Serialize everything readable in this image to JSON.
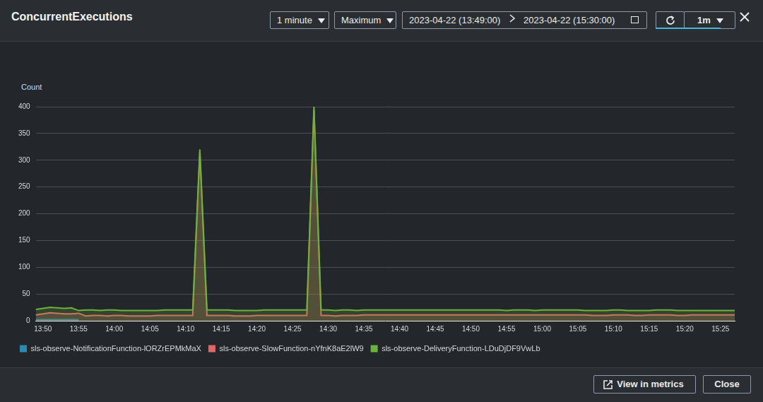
{
  "chart_data": {
    "type": "line",
    "title": "ConcurrentExecutions",
    "ylabel": "Count",
    "categories": [
      null,
      "13:50",
      null,
      null,
      null,
      null,
      "13:55",
      null,
      null,
      null,
      null,
      "14:00",
      null,
      null,
      null,
      null,
      "14:05",
      null,
      null,
      null,
      null,
      "14:10",
      null,
      null,
      null,
      null,
      "14:15",
      null,
      null,
      null,
      null,
      "14:20",
      null,
      null,
      null,
      null,
      "14:25",
      null,
      null,
      null,
      null,
      "14:30",
      null,
      null,
      null,
      null,
      "14:35",
      null,
      null,
      null,
      null,
      "14:40",
      null,
      null,
      null,
      null,
      "14:45",
      null,
      null,
      null,
      null,
      "14:50",
      null,
      null,
      null,
      null,
      "14:55",
      null,
      null,
      null,
      null,
      "15:00",
      null,
      null,
      null,
      null,
      "15:05",
      null,
      null,
      null,
      null,
      "15:10",
      null,
      null,
      null,
      null,
      "15:15",
      null,
      null,
      null,
      null,
      "15:20",
      null,
      null,
      null,
      null,
      "15:25",
      null,
      null
    ],
    "series": [
      {
        "name": "sls-observe-NotificationFunction-lORZrEPMkMaX",
        "color": "#2a8ab3",
        "values": [
          2,
          2,
          2,
          2,
          2,
          2,
          2,
          null,
          null,
          null,
          null,
          null,
          null,
          null,
          null,
          null,
          null,
          null,
          null,
          null,
          null,
          null,
          null,
          null,
          null,
          null,
          null,
          null,
          null,
          null,
          null,
          null,
          null,
          null,
          null,
          null,
          null,
          null,
          null,
          null,
          null,
          null,
          null,
          null,
          null,
          null,
          null,
          null,
          null,
          null,
          null,
          null,
          null,
          null,
          null,
          null,
          null,
          null,
          null,
          null,
          null,
          null,
          null,
          null,
          null,
          null,
          null,
          null,
          null,
          null,
          null,
          null,
          null,
          null,
          null,
          null,
          null,
          null,
          null,
          null,
          null,
          null,
          null,
          null,
          null,
          null,
          null,
          null,
          null,
          null,
          null,
          null,
          null,
          null,
          null,
          null,
          null,
          null,
          null
        ]
      },
      {
        "name": "sls-observe-SlowFunction-nYfnK8aE2lW9",
        "color": "#e06868",
        "values": [
          11,
          13,
          15,
          14,
          13,
          13,
          14,
          9,
          10,
          10,
          9,
          10,
          10,
          9,
          9,
          9,
          9,
          10,
          10,
          10,
          10,
          10,
          10,
          316,
          10,
          10,
          10,
          10,
          9,
          9,
          9,
          10,
          10,
          10,
          10,
          10,
          10,
          10,
          10,
          395,
          10,
          10,
          9,
          10,
          10,
          10,
          11,
          11,
          11,
          11,
          11,
          11,
          11,
          11,
          11,
          11,
          11,
          11,
          11,
          11,
          11,
          11,
          11,
          11,
          11,
          11,
          11,
          11,
          11,
          11,
          11,
          11,
          11,
          11,
          11,
          11,
          11,
          11,
          10,
          10,
          10,
          11,
          11,
          11,
          10,
          10,
          11,
          11,
          11,
          11,
          10,
          10,
          11,
          11,
          11,
          11,
          11,
          11,
          11
        ]
      },
      {
        "name": "sls-observe-DeliveryFunction-LDuDjDF9VwLb",
        "color": "#6cb33b",
        "values": [
          21,
          23,
          25,
          24,
          23,
          24,
          19,
          20,
          20,
          19,
          20,
          20,
          19,
          19,
          19,
          19,
          19,
          19,
          20,
          20,
          20,
          20,
          20,
          320,
          20,
          20,
          20,
          20,
          19,
          19,
          19,
          19,
          20,
          20,
          20,
          20,
          20,
          20,
          20,
          400,
          20,
          20,
          19,
          20,
          20,
          19,
          20,
          20,
          20,
          20,
          20,
          20,
          20,
          20,
          20,
          20,
          20,
          20,
          20,
          20,
          20,
          20,
          20,
          20,
          20,
          20,
          19,
          20,
          20,
          20,
          19,
          20,
          20,
          20,
          20,
          20,
          20,
          19,
          19,
          19,
          19,
          20,
          20,
          19,
          19,
          19,
          19,
          20,
          20,
          20,
          19,
          19,
          19,
          19,
          19,
          19,
          19,
          19,
          19
        ]
      }
    ],
    "ylim": [
      0,
      400
    ],
    "yticks": [
      0,
      50,
      100,
      150,
      200,
      250,
      300,
      350,
      400
    ],
    "grid": true,
    "legend": "bottom"
  },
  "controls": {
    "period": "1 minute",
    "statistic": "Maximum",
    "start": "2023-04-22 (13:49:00)",
    "end": "2023-04-22 (15:30:00)",
    "refresh_interval": "1m"
  },
  "buttons": [
    "View in metrics",
    "Close"
  ]
}
